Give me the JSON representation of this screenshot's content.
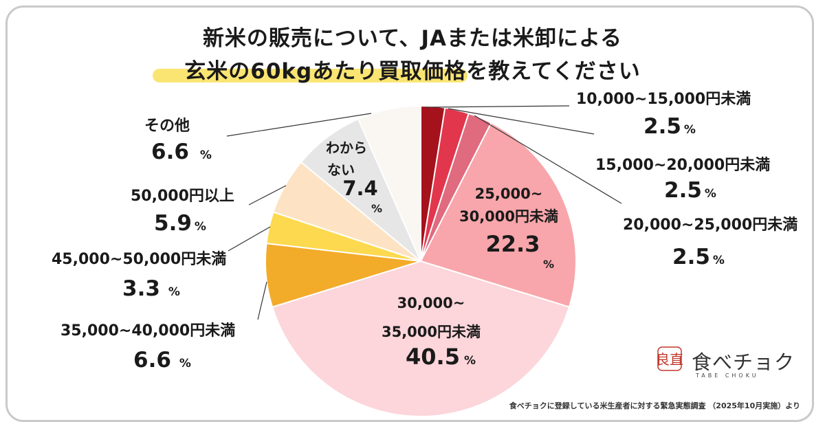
{
  "chart_data": {
    "type": "pie",
    "title_line1": "新米の販売について、JAまたは米卸による",
    "title_line2": "玄米の60kgあたり買取価格を教えてください",
    "unit": "%",
    "slices": [
      {
        "label": "10,000~15,000円未満",
        "value": 2.5,
        "color": "#a5121c"
      },
      {
        "label": "15,000~20,000円未満",
        "value": 2.5,
        "color": "#e2364d"
      },
      {
        "label": "20,000~25,000円未満",
        "value": 2.5,
        "color": "#e06a7e"
      },
      {
        "label": "25,000~30,000円未満",
        "value": 22.3,
        "color": "#f8a6ab"
      },
      {
        "label": "30,000~35,000円未満",
        "value": 40.5,
        "color": "#fcd6db"
      },
      {
        "label": "35,000~40,000円未満",
        "value": 6.6,
        "color": "#f3ab2a"
      },
      {
        "label": "45,000~50,000円未満",
        "value": 3.3,
        "color": "#fcd94e"
      },
      {
        "label": "50,000円以上",
        "value": 5.9,
        "color": "#fde3c3"
      },
      {
        "label": "わからない",
        "value": 7.4,
        "color": "#e6e6e6"
      },
      {
        "label": "その他",
        "value": 6.6,
        "color": "#faf6f2"
      }
    ]
  },
  "labels": {
    "s1": {
      "name": "10,000~15,000円未満",
      "value": "2.5",
      "unit": "%"
    },
    "s2": {
      "name": "15,000~20,000円未満",
      "value": "2.5",
      "unit": "%"
    },
    "s3": {
      "name": "20,000~25,000円未満",
      "value": "2.5",
      "unit": "%"
    },
    "s4": {
      "line1": "25,000~",
      "line2": "30,000円未満",
      "value": "22.3",
      "unit": "%"
    },
    "s5": {
      "line1": "30,000~",
      "line2": "35,000円未満",
      "value": "40.5",
      "unit": "%"
    },
    "s6": {
      "name": "35,000~40,000円未満",
      "value": "6.6",
      "unit": "%"
    },
    "s7": {
      "name": "45,000~50,000円未満",
      "value": "3.3",
      "unit": "%"
    },
    "s8": {
      "name": "50,000円以上",
      "value": "5.9",
      "unit": "%"
    },
    "s9": {
      "line1": "わから",
      "line2": "ない",
      "value": "7.4",
      "unit": "%"
    },
    "s10": {
      "name": "その他",
      "value": "6.6",
      "unit": "%"
    }
  },
  "footer": "食べチョクに登録している米生産者に対する緊急実態調査 （2025年10月実施）より",
  "logo": {
    "text": "食べチョク",
    "sub": "TABE CHOKU",
    "mark": "良直"
  }
}
